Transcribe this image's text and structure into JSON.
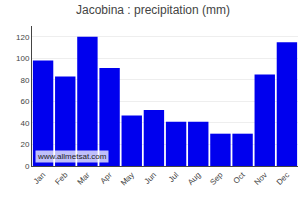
{
  "chart_data": {
    "type": "bar",
    "title": "Jacobina : precipitation (mm)",
    "categories": [
      "Jan",
      "Feb",
      "Mar",
      "Apr",
      "May",
      "Jun",
      "Jul",
      "Aug",
      "Sep",
      "Oct",
      "Nov",
      "Dec"
    ],
    "values": [
      98,
      83,
      120,
      91,
      47,
      52,
      41,
      41,
      30,
      30,
      85,
      115
    ],
    "color": "#0000ee",
    "ylim": [
      0,
      130
    ],
    "yticks": [
      0,
      20,
      40,
      60,
      80,
      100,
      120
    ],
    "grid": true,
    "annotations": [
      "www.allmetsat.com"
    ]
  }
}
